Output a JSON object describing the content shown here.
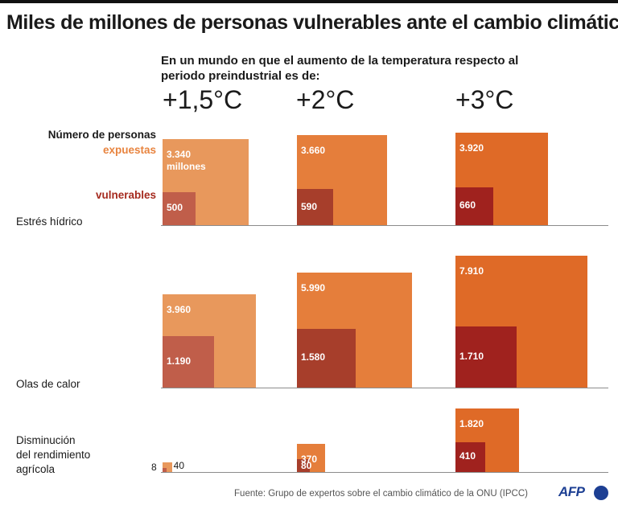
{
  "title": "Miles de millones de personas vulnerables ante el cambio climático",
  "subtitle": "En un mundo en que el aumento de la temperatura respecto al periodo preindustrial es de:",
  "legend": {
    "heading": "Número de personas",
    "exposed": "expuestas",
    "vulnerable": "vulnerables"
  },
  "colors": {
    "exposed": [
      "#e8985c",
      "#e57e3b",
      "#df6a27"
    ],
    "vulnerable": [
      "#c05e4a",
      "#a73e2b",
      "#a0221e"
    ],
    "exposed_label": "#e8843f",
    "vulnerable_label": "#a52a1e"
  },
  "chart_data": {
    "type": "nested-square",
    "scenarios": [
      "+1,5°C",
      "+2°C",
      "+3°C"
    ],
    "unit": "millones",
    "rows": [
      {
        "name": "Estrés hídrico",
        "label_lines": [
          "Estrés hídrico"
        ],
        "exposed": [
          3340,
          3660,
          3920
        ],
        "vulnerable": [
          500,
          590,
          660
        ],
        "exposed_labels": [
          "3.340",
          "3.660",
          "3.920"
        ],
        "vulnerable_labels": [
          "500",
          "590",
          "660"
        ],
        "unit_note": "millones"
      },
      {
        "name": "Olas de calor",
        "label_lines": [
          "Olas de calor"
        ],
        "exposed": [
          3960,
          5990,
          7910
        ],
        "vulnerable": [
          1190,
          1580,
          1710
        ],
        "exposed_labels": [
          "3.960",
          "5.990",
          "7.910"
        ],
        "vulnerable_labels": [
          "1.190",
          "1.580",
          "1.710"
        ]
      },
      {
        "name": "Disminución del rendimiento agrícola",
        "label_lines": [
          "Disminución",
          "del rendimiento",
          "agrícola"
        ],
        "exposed": [
          40,
          370,
          1820
        ],
        "vulnerable": [
          8,
          80,
          410
        ],
        "exposed_labels": [
          "40",
          "370",
          "1.820"
        ],
        "vulnerable_labels": [
          "8",
          "80",
          "410"
        ]
      }
    ]
  },
  "source": "Fuente: Grupo de expertos sobre el cambio climático de la ONU (IPCC)",
  "logo": "AFP"
}
